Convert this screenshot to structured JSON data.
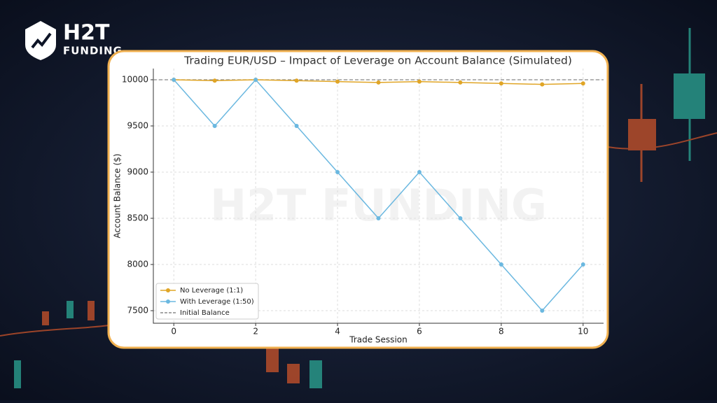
{
  "brand": {
    "name": "H2T",
    "sub": "FUNDING"
  },
  "chart_data": {
    "type": "line",
    "title": "Trading EUR/USD – Impact of Leverage on Account Balance (Simulated)",
    "watermark": "H2T FUNDING",
    "x_label": "Trade Session",
    "y_label": "Account Balance ($)",
    "x": [
      0,
      1,
      2,
      3,
      4,
      5,
      6,
      7,
      8,
      9,
      10
    ],
    "series": [
      {
        "name": "No Leverage (1:1)",
        "color": "#e0a526",
        "values": [
          10000,
          9990,
          10000,
          9990,
          9980,
          9970,
          9980,
          9970,
          9960,
          9950,
          9960
        ]
      },
      {
        "name": "With Leverage (1:50)",
        "color": "#6bb8e0",
        "values": [
          10000,
          9500,
          10000,
          9500,
          9000,
          8500,
          9000,
          8500,
          8000,
          7500,
          8000
        ]
      }
    ],
    "reference_line": {
      "name": "Initial Balance",
      "value": 10000,
      "color": "#888888"
    },
    "xlim": [
      -0.5,
      10.5
    ],
    "ylim": [
      7364,
      10121
    ],
    "xticks": [
      0,
      2,
      4,
      6,
      8,
      10
    ],
    "yticks": [
      7500,
      8000,
      8500,
      9000,
      9500,
      10000
    ],
    "grid": true,
    "legend": "lower left"
  }
}
